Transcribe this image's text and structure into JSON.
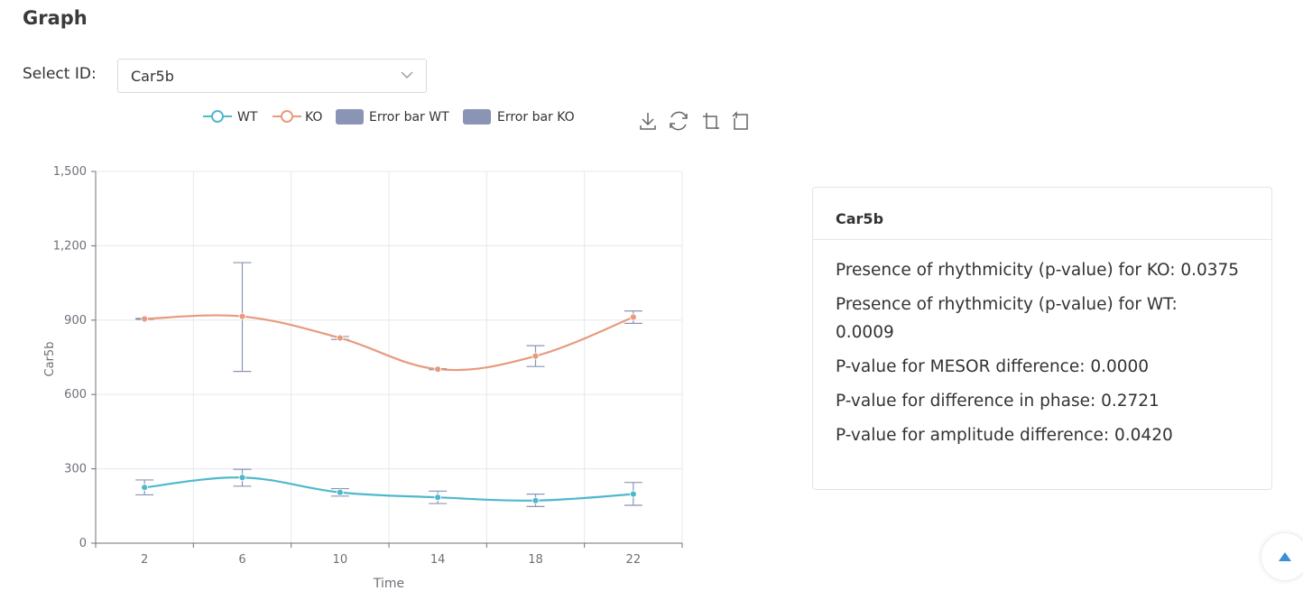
{
  "page": {
    "title": "Graph"
  },
  "selector": {
    "label": "Select ID:",
    "value": "Car5b"
  },
  "toolbox": [
    "download-icon",
    "refresh-icon",
    "zoom-icon",
    "zoom-reset-icon"
  ],
  "colors": {
    "wt": "#4fb8cc",
    "ko": "#e89a7d",
    "error_bar": "#8a94b5",
    "grid": "#e6e8ee",
    "axis": "#6e7079"
  },
  "chart_data": {
    "type": "line",
    "xlabel": "Time",
    "ylabel": "Car5b",
    "ylim": [
      0,
      1500
    ],
    "yticks": [
      "0",
      "300",
      "600",
      "900",
      "1,200",
      "1,500"
    ],
    "x": [
      2,
      6,
      10,
      14,
      18,
      22
    ],
    "xticks": [
      "2",
      "6",
      "10",
      "14",
      "18",
      "22"
    ],
    "grid": true,
    "legend_position": "top",
    "legend": [
      "WT",
      "KO",
      "Error bar WT",
      "Error bar KO"
    ],
    "series": [
      {
        "name": "WT",
        "values": [
          225,
          265,
          205,
          185,
          172,
          198
        ],
        "err_low": [
          195,
          230,
          190,
          160,
          148,
          153
        ],
        "err_high": [
          255,
          298,
          220,
          210,
          198,
          245
        ]
      },
      {
        "name": "KO",
        "values": [
          905,
          915,
          828,
          702,
          755,
          912
        ],
        "err_low": [
          903,
          693,
          822,
          700,
          713,
          887
        ],
        "err_high": [
          907,
          1132,
          834,
          704,
          797,
          937
        ]
      }
    ]
  },
  "card": {
    "title": "Car5b",
    "lines": [
      "Presence of rhythmicity (p-value) for KO: 0.0375",
      "Presence of rhythmicity (p-value) for WT: 0.0009",
      "P-value for MESOR difference: 0.0000",
      "P-value for difference in phase: 0.2721",
      "P-value for amplitude difference: 0.0420"
    ]
  }
}
